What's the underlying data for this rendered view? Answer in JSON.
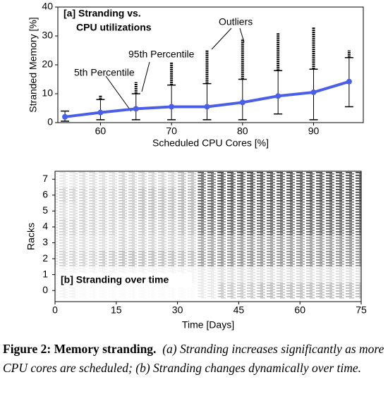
{
  "chart_data": [
    {
      "type": "box",
      "title_lines": [
        "[a]   Stranding vs.",
        "CPU utilizations"
      ],
      "x_label": "Scheduled CPU Cores [%]",
      "y_label": "Stranded Memory [%]",
      "x": [
        55,
        60,
        65,
        70,
        75,
        80,
        85,
        90,
        95
      ],
      "values": [
        2,
        3.5,
        4.8,
        5.5,
        5.5,
        7,
        9.2,
        10.5,
        14.2
      ],
      "whisker_low": [
        0.5,
        1,
        1,
        1,
        1,
        1,
        3,
        1,
        5.5
      ],
      "whisker_high": [
        4,
        8,
        10,
        13,
        13.5,
        15,
        18,
        18.5,
        22.5
      ],
      "outlier_max": [
        4,
        9.5,
        14,
        21,
        25,
        29,
        31,
        33,
        25
      ],
      "color": "#4a5ee8",
      "xlim": [
        54,
        97
      ],
      "xticks": [
        60,
        70,
        80,
        90
      ],
      "ylim": [
        0,
        40
      ],
      "yticks": [
        0,
        10,
        20,
        30,
        40
      ],
      "annotations": [
        "Outliers",
        "95th Percentile",
        "5th Percentile"
      ]
    },
    {
      "type": "heatmap",
      "title": "[b] Stranding over time",
      "x_label": "Time [Days]",
      "y_label": "Racks",
      "categories": [
        "0",
        "1",
        "2",
        "3",
        "4",
        "5",
        "6",
        "7"
      ],
      "bins": [
        0,
        5,
        10,
        15,
        20,
        25,
        30,
        35,
        40,
        45,
        50,
        55,
        60,
        65,
        70,
        75
      ],
      "values": [
        [
          0.05,
          0.02,
          0.02,
          0.02,
          0.02,
          0.02,
          0.02,
          0.1,
          0.25,
          0.25,
          0.3,
          0.3,
          0.3,
          0.3,
          0.3
        ],
        [
          0.05,
          0.05,
          0.05,
          0.05,
          0.05,
          0.05,
          0.05,
          0.1,
          0.15,
          0.15,
          0.15,
          0.15,
          0.15,
          0.15,
          0.15
        ],
        [
          0.2,
          0.2,
          0.25,
          0.3,
          0.3,
          0.3,
          0.3,
          0.45,
          0.5,
          0.5,
          0.5,
          0.5,
          0.5,
          0.5,
          0.5
        ],
        [
          0.15,
          0.15,
          0.15,
          0.2,
          0.2,
          0.2,
          0.2,
          0.4,
          0.45,
          0.45,
          0.45,
          0.45,
          0.45,
          0.45,
          0.5
        ],
        [
          0.2,
          0.2,
          0.2,
          0.2,
          0.25,
          0.25,
          0.3,
          0.6,
          0.7,
          0.7,
          0.7,
          0.7,
          0.7,
          0.7,
          0.7
        ],
        [
          0.15,
          0.2,
          0.2,
          0.25,
          0.3,
          0.3,
          0.35,
          0.7,
          0.75,
          0.75,
          0.75,
          0.75,
          0.75,
          0.75,
          0.75
        ],
        [
          0.2,
          0.2,
          0.2,
          0.25,
          0.3,
          0.3,
          0.35,
          0.7,
          0.8,
          0.8,
          0.8,
          0.8,
          0.8,
          0.8,
          0.8
        ],
        [
          0.1,
          0.15,
          0.15,
          0.2,
          0.2,
          0.2,
          0.3,
          0.7,
          0.8,
          0.8,
          0.8,
          0.8,
          0.8,
          0.8,
          0.8
        ]
      ],
      "color": "#000000",
      "xlim": [
        0,
        75
      ],
      "xticks": [
        0,
        15,
        30,
        45,
        60,
        75
      ],
      "ylim": [
        -0.7,
        7.5
      ]
    }
  ],
  "caption": {
    "label": "Figure 2:  Memory stranding.",
    "text": "(a) Stranding increases significantly as more CPU cores are scheduled; (b) Stranding changes dynamically over time."
  }
}
